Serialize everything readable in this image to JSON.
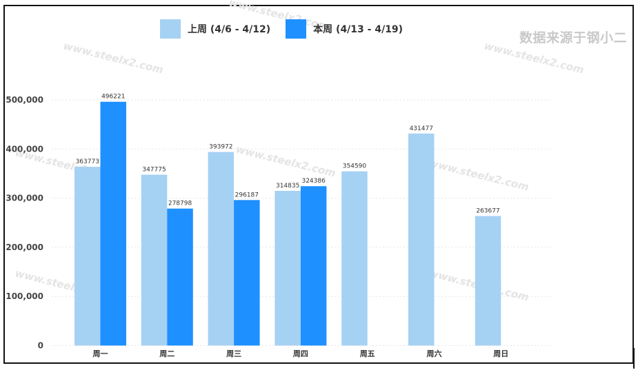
{
  "source_note": "数据来源于钢小二",
  "watermark_text": "www.steelx2.com",
  "colors": {
    "last_week": "#a5d1f3",
    "this_week": "#1e90ff"
  },
  "chart_data": {
    "type": "bar",
    "categories": [
      "周一",
      "周二",
      "周三",
      "周四",
      "周五",
      "周六",
      "周日"
    ],
    "series": [
      {
        "name": "上周 (4/6 - 4/12)",
        "values": [
          363773,
          347775,
          393972,
          314835,
          354590,
          431477,
          263677
        ]
      },
      {
        "name": "本周 (4/13 - 4/19)",
        "values": [
          496221,
          278798,
          296187,
          324386,
          null,
          null,
          null
        ]
      }
    ],
    "ylim": [
      0,
      500000
    ],
    "yticks": [
      "0",
      "100,000",
      "200,000",
      "300,000",
      "400,000",
      "500,000"
    ],
    "ytick_values": [
      0,
      100000,
      200000,
      300000,
      400000,
      500000
    ],
    "grid": true,
    "legend_position": "top"
  }
}
